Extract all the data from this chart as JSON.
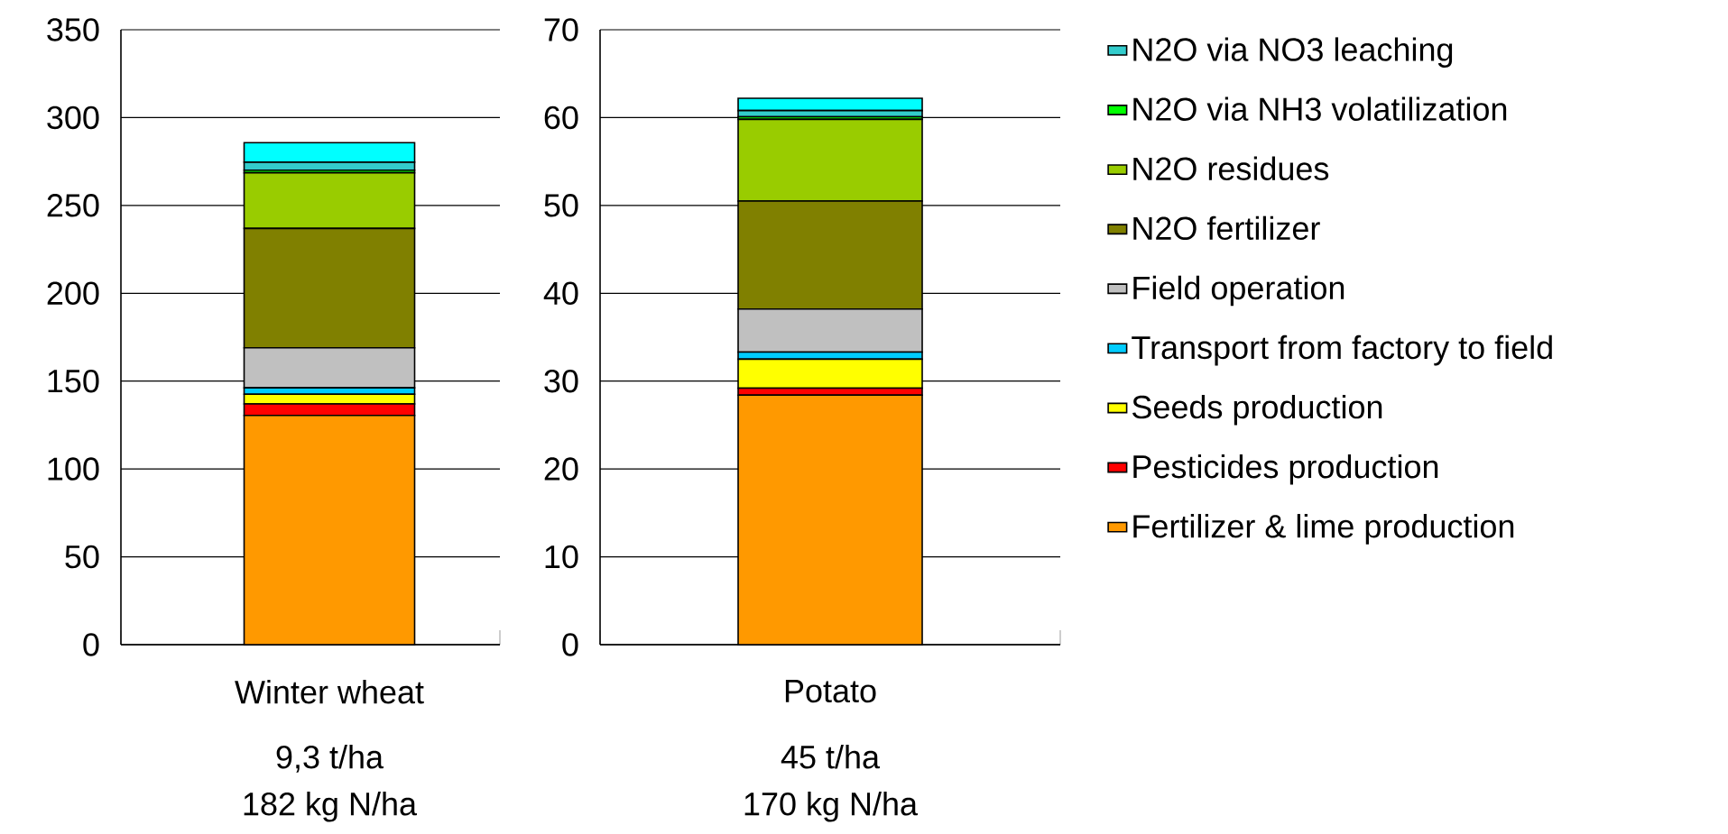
{
  "chart_data": [
    {
      "type": "bar",
      "stacked": true,
      "categories": [
        "Winter wheat"
      ],
      "ylim": [
        0,
        350
      ],
      "yticks": [
        0,
        50,
        100,
        150,
        200,
        250,
        300,
        350
      ],
      "grid": "y",
      "annotations": [
        "9,3 t/ha",
        "182 kg N/ha"
      ],
      "series": [
        {
          "color": "#ff9900",
          "values": [
            130.5
          ]
        },
        {
          "color": "#ff0000",
          "values": [
            6.5
          ]
        },
        {
          "color": "#ffff00",
          "values": [
            5.5
          ]
        },
        {
          "color": "#00ccff",
          "values": [
            3.7
          ]
        },
        {
          "color": "#c0c0c0",
          "values": [
            22.8
          ]
        },
        {
          "color": "#808000",
          "values": [
            67.9
          ]
        },
        {
          "color": "#99cc00",
          "values": [
            31.7
          ]
        },
        {
          "color": "#00ff00",
          "values": [
            1.5
          ]
        },
        {
          "color": "#33cccc",
          "values": [
            4.5
          ]
        },
        {
          "color": "#00ffff",
          "values": [
            11.1
          ]
        }
      ]
    },
    {
      "type": "bar",
      "stacked": true,
      "categories": [
        "Potato"
      ],
      "ylim": [
        0,
        70
      ],
      "yticks": [
        0,
        10,
        20,
        30,
        40,
        50,
        60,
        70
      ],
      "grid": "y",
      "legend": "right",
      "annotations": [
        "45 t/ha",
        "170 kg N/ha"
      ],
      "series": [
        {
          "name": "Fertilizer & lime production",
          "color": "#ff9900",
          "values": [
            28.4
          ]
        },
        {
          "name": "Pesticides production",
          "color": "#ff0000",
          "values": [
            0.8
          ]
        },
        {
          "name": "Seeds production",
          "color": "#ffff00",
          "values": [
            3.3
          ]
        },
        {
          "name": "Transport from factory to field",
          "color": "#00ccff",
          "values": [
            0.8
          ]
        },
        {
          "name": "Field operation",
          "color": "#c0c0c0",
          "values": [
            4.9
          ]
        },
        {
          "name": "N2O fertilizer",
          "color": "#808000",
          "values": [
            12.3
          ]
        },
        {
          "name": "N2O residues",
          "color": "#99cc00",
          "values": [
            9.3
          ]
        },
        {
          "name": "N2O via NH3 volatilization",
          "color": "#00ff00",
          "values": [
            0.3
          ]
        },
        {
          "name": "N2O via NO3 leaching",
          "color": "#33cccc",
          "values": [
            0.7
          ]
        },
        {
          "color": "#00ffff",
          "values": [
            1.4
          ]
        }
      ]
    }
  ]
}
